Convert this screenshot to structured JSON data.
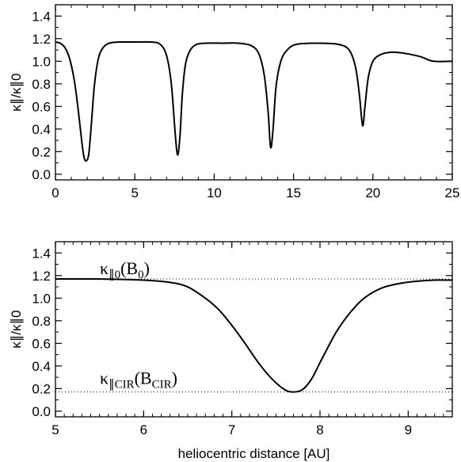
{
  "chart_data": [
    {
      "type": "line",
      "ylabel": "κ∥/κ∥0",
      "xlabel": "",
      "xlim": [
        0,
        25
      ],
      "ylim": [
        -0.05,
        1.5
      ],
      "xticks": [
        0,
        5,
        10,
        15,
        20,
        25
      ],
      "yticks": [
        0.0,
        0.2,
        0.4,
        0.6,
        0.8,
        1.0,
        1.2,
        1.4
      ],
      "xtick_labels": [
        "0",
        "5",
        "10",
        "15",
        "20",
        "25"
      ],
      "ytick_labels": [
        "0.0",
        "0.2",
        "0.4",
        "0.6",
        "0.8",
        "1.0",
        "1.2",
        "1.4"
      ],
      "series": [
        {
          "x": [
            0,
            0.3,
            0.6,
            0.9,
            1.2,
            1.45,
            1.65,
            1.8,
            1.95,
            2.1,
            2.25,
            2.45,
            2.7,
            3.0,
            3.4,
            4.0,
            5.0,
            6.0,
            6.6,
            7.0,
            7.3,
            7.55,
            7.7,
            7.85,
            8.0,
            8.2,
            8.5,
            8.9,
            9.5,
            10.5,
            11.5,
            12.3,
            12.8,
            13.15,
            13.4,
            13.55,
            13.7,
            13.9,
            14.2,
            14.6,
            15.2,
            16.5,
            17.8,
            18.5,
            18.9,
            19.15,
            19.35,
            19.5,
            19.7,
            20.0,
            20.5,
            21.2,
            22.0,
            23.0,
            23.8,
            25.0
          ],
          "y": [
            1.17,
            1.16,
            1.12,
            1.02,
            0.82,
            0.55,
            0.3,
            0.15,
            0.12,
            0.18,
            0.42,
            0.78,
            1.02,
            1.12,
            1.16,
            1.17,
            1.17,
            1.17,
            1.15,
            1.05,
            0.8,
            0.35,
            0.17,
            0.35,
            0.72,
            0.98,
            1.1,
            1.15,
            1.16,
            1.16,
            1.16,
            1.14,
            1.07,
            0.88,
            0.55,
            0.24,
            0.38,
            0.78,
            1.0,
            1.1,
            1.15,
            1.16,
            1.15,
            1.1,
            0.95,
            0.7,
            0.43,
            0.6,
            0.85,
            1.0,
            1.06,
            1.08,
            1.07,
            1.04,
            1.0,
            1.0
          ]
        }
      ]
    },
    {
      "type": "line",
      "ylabel": "κ∥/κ∥0",
      "xlabel": "heliocentric distance [AU]",
      "xlim": [
        5,
        9.5
      ],
      "ylim": [
        -0.05,
        1.5
      ],
      "xticks": [
        5,
        6,
        7,
        8,
        9
      ],
      "yticks": [
        0.0,
        0.2,
        0.4,
        0.6,
        0.8,
        1.0,
        1.2,
        1.4
      ],
      "xtick_labels": [
        "5",
        "6",
        "7",
        "8",
        "9"
      ],
      "ytick_labels": [
        "0.0",
        "0.2",
        "0.4",
        "0.6",
        "0.8",
        "1.0",
        "1.2",
        "1.4"
      ],
      "reference_lines": [
        {
          "y": 1.17,
          "style": "dotted",
          "label": "κ∥0(B0)"
        },
        {
          "y": 0.17,
          "style": "dotted",
          "label": "κ∥CIR(BCIR)"
        }
      ],
      "series": [
        {
          "x": [
            5.0,
            5.5,
            6.0,
            6.3,
            6.5,
            6.7,
            6.85,
            7.0,
            7.15,
            7.3,
            7.45,
            7.6,
            7.7,
            7.8,
            7.9,
            8.0,
            8.1,
            8.2,
            8.35,
            8.5,
            8.7,
            8.9,
            9.1,
            9.3,
            9.5
          ],
          "y": [
            1.17,
            1.17,
            1.16,
            1.14,
            1.1,
            1.0,
            0.9,
            0.76,
            0.6,
            0.43,
            0.29,
            0.19,
            0.17,
            0.19,
            0.28,
            0.43,
            0.58,
            0.72,
            0.88,
            1.0,
            1.09,
            1.13,
            1.15,
            1.16,
            1.16
          ]
        }
      ]
    }
  ],
  "annotations": {
    "kappa0": {
      "main": "κ",
      "sub": "∥0",
      "paren_open": "(B",
      "arg_sub": "0",
      "paren_close": ")"
    },
    "kappaCIR": {
      "main": "κ",
      "sub": "∥CIR",
      "paren_open": "(B",
      "arg_sub": "CIR",
      "paren_close": ")"
    }
  }
}
